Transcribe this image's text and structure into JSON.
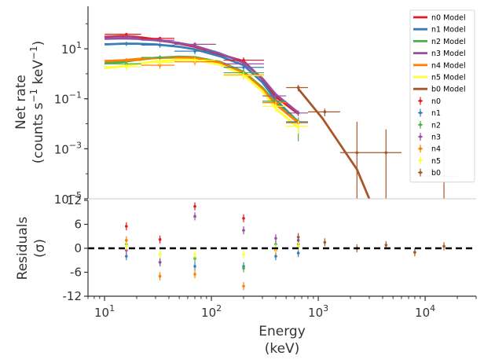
{
  "chart_data": [
    {
      "type": "line",
      "panel": "spectrum",
      "ylabel": [
        "Net rate",
        "(counts s",
        "−1",
        " keV",
        "−1",
        ")"
      ],
      "xscale": "log",
      "yscale": "log",
      "xlim": [
        7,
        30000
      ],
      "ylim": [
        1e-05,
        500
      ],
      "x_tick_labels": [],
      "y_ticks": [
        {
          "value": 10,
          "base": "10",
          "exp": "1"
        },
        {
          "value": 0.1,
          "base": "10",
          "exp": "−1"
        },
        {
          "value": 0.001,
          "base": "10",
          "exp": "−3"
        },
        {
          "value": 1e-05,
          "base": "10",
          "exp": "−5"
        }
      ],
      "legend_position": "top-right",
      "series": [
        {
          "name": "n0 Model",
          "kind": "model",
          "color": "#e41a1c",
          "x": [
            10,
            15,
            20,
            30,
            50,
            70,
            120,
            200,
            300,
            400,
            650
          ],
          "y": [
            30,
            32,
            30,
            24,
            16,
            12,
            6,
            3.2,
            0.6,
            0.12,
            0.025
          ]
        },
        {
          "name": "n1 Model",
          "kind": "model",
          "color": "#377eb8",
          "x": [
            10,
            15,
            20,
            30,
            50,
            70,
            120,
            200,
            300,
            400,
            650
          ],
          "y": [
            15,
            16,
            16,
            15,
            12,
            9.5,
            5,
            2.2,
            0.45,
            0.09,
            0.012
          ]
        },
        {
          "name": "n2 Model",
          "kind": "model",
          "color": "#4daf4a",
          "x": [
            10,
            15,
            20,
            30,
            50,
            70,
            120,
            200,
            300,
            400,
            650
          ],
          "y": [
            2.6,
            3,
            3.6,
            4.3,
            4.8,
            4.6,
            3,
            1.2,
            0.28,
            0.07,
            0.012
          ]
        },
        {
          "name": "n3 Model",
          "kind": "model",
          "color": "#984ea3",
          "x": [
            10,
            15,
            20,
            30,
            50,
            70,
            120,
            200,
            300,
            400,
            650
          ],
          "y": [
            25,
            26,
            25,
            22,
            17,
            13,
            6.5,
            2.8,
            0.65,
            0.15,
            0.028
          ]
        },
        {
          "name": "n4 Model",
          "kind": "model",
          "color": "#ff7f00",
          "x": [
            10,
            15,
            20,
            30,
            50,
            70,
            120,
            200,
            300,
            400,
            650
          ],
          "y": [
            3.2,
            3.5,
            3.9,
            4.3,
            4.5,
            4.3,
            2.8,
            1.1,
            0.25,
            0.06,
            0.011
          ]
        },
        {
          "name": "n5 Model",
          "kind": "model",
          "color": "#ffff33",
          "x": [
            10,
            15,
            20,
            30,
            50,
            70,
            120,
            200,
            300,
            400,
            650
          ],
          "y": [
            1.7,
            2,
            2.5,
            3.1,
            3.6,
            3.6,
            2.3,
            0.9,
            0.2,
            0.04,
            0.007
          ]
        },
        {
          "name": "b0 Model",
          "kind": "model",
          "color": "#a65628",
          "x": [
            650,
            1100,
            2300,
            3000
          ],
          "y": [
            0.25,
            0.016,
            0.00015,
            1e-05
          ]
        },
        {
          "name": "n0",
          "kind": "data",
          "color": "#e41a1c",
          "x": [
            16,
            33,
            70,
            200
          ],
          "x_err": [
            [
              10,
              22
            ],
            [
              22,
              45
            ],
            [
              45,
              110
            ],
            [
              130,
              310
            ]
          ],
          "y": [
            38,
            26,
            15,
            3.5
          ],
          "y_err": [
            [
              33,
              43
            ],
            [
              22,
              30
            ],
            [
              12,
              18
            ],
            [
              2.5,
              4.5
            ]
          ]
        },
        {
          "name": "n1",
          "kind": "data",
          "color": "#377eb8",
          "x": [
            16,
            33,
            70,
            200,
            400,
            650
          ],
          "x_err": [
            [
              10,
              22
            ],
            [
              22,
              45
            ],
            [
              45,
              110
            ],
            [
              130,
              310
            ],
            [
              300,
              500
            ],
            [
              500,
              800
            ]
          ],
          "y": [
            16,
            14,
            8,
            1.8,
            0.08,
            0.012
          ],
          "y_err": [
            [
              13,
              19
            ],
            [
              11,
              17
            ],
            [
              6,
              10
            ],
            [
              1.3,
              2.3
            ],
            [
              0.055,
              0.11
            ],
            [
              0.008,
              0.017
            ]
          ]
        },
        {
          "name": "n2",
          "kind": "data",
          "color": "#4daf4a",
          "x": [
            16,
            33,
            70,
            200,
            400,
            650
          ],
          "x_err": [
            [
              10,
              22
            ],
            [
              22,
              45
            ],
            [
              45,
              110
            ],
            [
              130,
              310
            ],
            [
              300,
              500
            ],
            [
              500,
              800
            ]
          ],
          "y": [
            2.5,
            4.5,
            3.5,
            1.1,
            0.08,
            0.011
          ],
          "y_err": [
            [
              1.9,
              3.2
            ],
            [
              3.6,
              5.5
            ],
            [
              2.6,
              4.5
            ],
            [
              0.7,
              1.5
            ],
            [
              0.05,
              0.11
            ],
            [
              0.002,
              0.018
            ]
          ]
        },
        {
          "name": "n3",
          "kind": "data",
          "color": "#984ea3",
          "x": [
            16,
            33,
            70,
            200,
            400,
            650
          ],
          "x_err": [
            [
              10,
              22
            ],
            [
              22,
              45
            ],
            [
              45,
              110
            ],
            [
              130,
              310
            ],
            [
              300,
              500
            ],
            [
              500,
              800
            ]
          ],
          "y": [
            30,
            22,
            15,
            2.5,
            0.13,
            0.027
          ],
          "y_err": [
            [
              26,
              34
            ],
            [
              18,
              26
            ],
            [
              12,
              18
            ],
            [
              1.9,
              3.2
            ],
            [
              0.09,
              0.17
            ],
            [
              0.02,
              0.034
            ]
          ]
        },
        {
          "name": "n4",
          "kind": "data",
          "color": "#ff7f00",
          "x": [
            16,
            33,
            70,
            200,
            400,
            650
          ],
          "x_err": [
            [
              10,
              22
            ],
            [
              22,
              45
            ],
            [
              45,
              110
            ],
            [
              130,
              310
            ],
            [
              300,
              500
            ],
            [
              500,
              800
            ]
          ],
          "y": [
            3.4,
            2.2,
            3,
            0.9,
            0.07,
            0.011
          ],
          "y_err": [
            [
              2.7,
              4.2
            ],
            [
              1.6,
              2.8
            ],
            [
              2.2,
              3.8
            ],
            [
              0.6,
              1.2
            ],
            [
              0.045,
              0.1
            ],
            [
              0.007,
              0.016
            ]
          ]
        },
        {
          "name": "n5",
          "kind": "data",
          "color": "#ffff33",
          "x": [
            16,
            33,
            70,
            200,
            400,
            650
          ],
          "x_err": [
            [
              10,
              22
            ],
            [
              22,
              45
            ],
            [
              45,
              110
            ],
            [
              130,
              310
            ],
            [
              300,
              500
            ],
            [
              500,
              800
            ]
          ],
          "y": [
            1.9,
            2.8,
            3.5,
            0.85,
            0.05,
            0.008
          ],
          "y_err": [
            [
              1.4,
              2.5
            ],
            [
              2.1,
              3.6
            ],
            [
              2.7,
              4.4
            ],
            [
              0.55,
              1.2
            ],
            [
              0.03,
              0.075
            ],
            [
              0.004,
              0.013
            ]
          ]
        },
        {
          "name": "b0",
          "kind": "data",
          "color": "#a65628",
          "x": [
            650,
            1150,
            2300,
            4300,
            15000
          ],
          "x_err": [
            [
              500,
              800
            ],
            [
              800,
              1600
            ],
            [
              1600,
              3200
            ],
            [
              3200,
              6000
            ],
            [
              10000,
              20000
            ]
          ],
          "y": [
            0.28,
            0.03,
            0.0007,
            0.0007,
            8e-05
          ],
          "y_err": [
            [
              0.2,
              0.36
            ],
            [
              0.02,
              0.04
            ],
            [
              1e-05,
              0.012
            ],
            [
              1e-05,
              0.006
            ],
            [
              1e-05,
              0.002
            ]
          ]
        }
      ]
    },
    {
      "type": "scatter",
      "panel": "residuals",
      "xlabel": [
        "Energy",
        "(keV)"
      ],
      "ylabel": [
        "Residuals",
        "(σ)"
      ],
      "xscale": "log",
      "xlim": [
        7,
        30000
      ],
      "ylim": [
        -12,
        12
      ],
      "y_ticks": [
        "-12",
        "-6",
        "0",
        "6",
        "12"
      ],
      "x_ticks": [
        {
          "value": 10,
          "base": "10",
          "exp": "1"
        },
        {
          "value": 100,
          "base": "10",
          "exp": "2"
        },
        {
          "value": 1000,
          "base": "10",
          "exp": "3"
        },
        {
          "value": 10000,
          "base": "10",
          "exp": "4"
        }
      ],
      "zero_line": {
        "y": 0,
        "style": "dashed",
        "color": "#000000"
      },
      "series": [
        {
          "name": "n0",
          "color": "#e41a1c",
          "x": [
            16,
            33,
            70,
            200
          ],
          "y": [
            5.5,
            2.2,
            10.5,
            7.5
          ],
          "y_err": 1
        },
        {
          "name": "n1",
          "color": "#377eb8",
          "x": [
            16,
            33,
            70,
            200,
            400,
            650
          ],
          "y": [
            -2,
            -3.5,
            -4.5,
            -4.5,
            -2,
            -1.2
          ],
          "y_err": 1
        },
        {
          "name": "n2",
          "color": "#4daf4a",
          "x": [
            16,
            33,
            70,
            200,
            400,
            650
          ],
          "y": [
            1,
            -1.5,
            -2.5,
            -5,
            1,
            1
          ],
          "y_err": 1
        },
        {
          "name": "n3",
          "color": "#984ea3",
          "x": [
            16,
            33,
            70,
            200,
            400,
            650
          ],
          "y": [
            -0.5,
            -3.5,
            8,
            4.5,
            2.5,
            2
          ],
          "y_err": 1
        },
        {
          "name": "n4",
          "color": "#ff7f00",
          "x": [
            16,
            33,
            70,
            200,
            400,
            650
          ],
          "y": [
            2,
            -7,
            -6.5,
            -9.5,
            -0.5,
            0.5
          ],
          "y_err": 1
        },
        {
          "name": "n5",
          "color": "#ffff33",
          "x": [
            16,
            33,
            70,
            200,
            400,
            650
          ],
          "y": [
            0.5,
            -1.5,
            -1.5,
            -1.5,
            0,
            0.5
          ],
          "y_err": 1
        },
        {
          "name": "b0",
          "color": "#a65628",
          "x": [
            650,
            1150,
            2300,
            4300,
            8000,
            15000
          ],
          "y": [
            2.8,
            1.5,
            0,
            0.8,
            -1,
            0.5
          ],
          "y_err": 1
        }
      ]
    }
  ]
}
